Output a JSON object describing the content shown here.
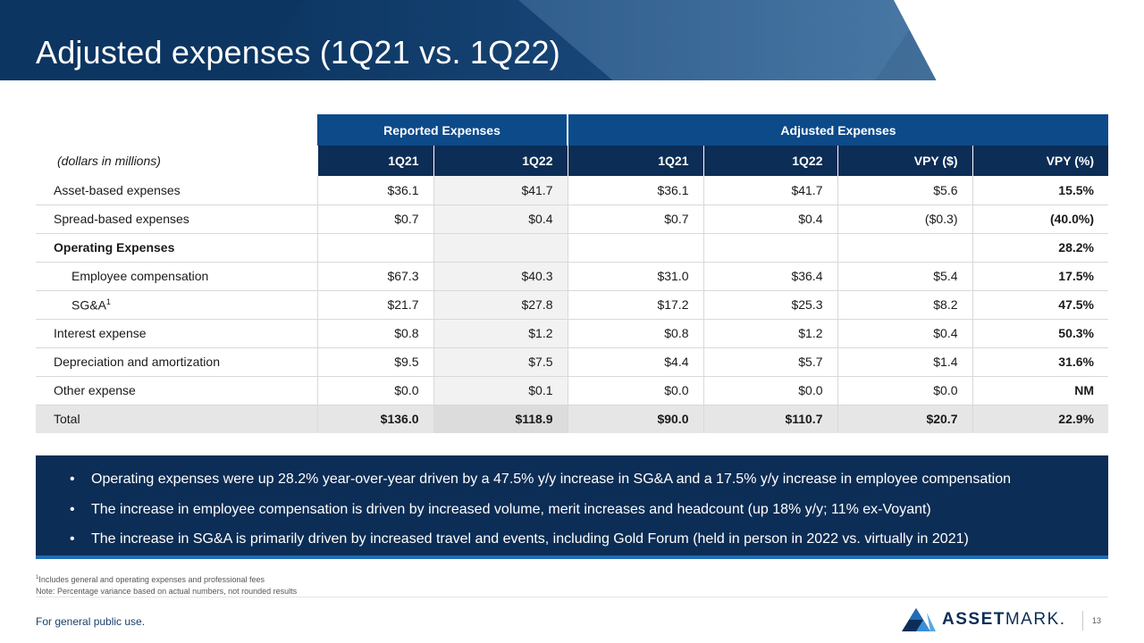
{
  "title": "Adjusted expenses (1Q21 vs. 1Q22)",
  "table": {
    "group_headers": [
      "Reported Expenses",
      "Adjusted Expenses"
    ],
    "row_label_header": "(dollars in millions)",
    "columns": [
      "1Q21",
      "1Q22",
      "1Q21",
      "1Q22",
      "VPY ($)",
      "VPY (%)"
    ],
    "rows": [
      {
        "label": "Asset-based expenses",
        "values": [
          "$36.1",
          "$41.7",
          "$36.1",
          "$41.7",
          "$5.6",
          "15.5%"
        ]
      },
      {
        "label": "Spread-based expenses",
        "values": [
          "$0.7",
          "$0.4",
          "$0.7",
          "$0.4",
          "($0.3)",
          "(40.0%)"
        ]
      },
      {
        "label": "Operating Expenses",
        "values": [
          "",
          "",
          "",
          "",
          "",
          "28.2%"
        ]
      },
      {
        "label": "Employee compensation",
        "values": [
          "$67.3",
          "$40.3",
          "$31.0",
          "$36.4",
          "$5.4",
          "17.5%"
        ]
      },
      {
        "label": "SG&A",
        "label_sup": "1",
        "values": [
          "$21.7",
          "$27.8",
          "$17.2",
          "$25.3",
          "$8.2",
          "47.5%"
        ]
      },
      {
        "label": "Interest expense",
        "values": [
          "$0.8",
          "$1.2",
          "$0.8",
          "$1.2",
          "$0.4",
          "50.3%"
        ]
      },
      {
        "label": "Depreciation and amortization",
        "values": [
          "$9.5",
          "$7.5",
          "$4.4",
          "$5.7",
          "$1.4",
          "31.6%"
        ]
      },
      {
        "label": "Other expense",
        "values": [
          "$0.0",
          "$0.1",
          "$0.0",
          "$0.0",
          "$0.0",
          "NM"
        ]
      },
      {
        "label": "Total",
        "values": [
          "$136.0",
          "$118.9",
          "$90.0",
          "$110.7",
          "$20.7",
          "22.9%"
        ]
      }
    ]
  },
  "commentary": {
    "bullet": "•",
    "items": [
      "Operating expenses were up 28.2% year-over-year driven by a 47.5% y/y increase in SG&A and a 17.5% y/y increase in employee compensation",
      "The increase in employee compensation is driven by increased volume, merit increases and headcount (up 18% y/y; 11% ex-Voyant)",
      "The increase in SG&A is primarily driven by increased travel and events, including Gold Forum (held in person in 2022 vs. virtually in 2021)"
    ]
  },
  "footnotes": {
    "note1_sup": "1",
    "note1": "Includes general and operating expenses and professional fees",
    "note2": "Note: Percentage variance based on actual numbers, not rounded results"
  },
  "footer": {
    "text": "For general public use.",
    "logo_text_bold": "ASSET",
    "logo_text_light": "MARK",
    "logo_text_dot": ".",
    "page_number": "13"
  },
  "colors": {
    "header_navy": "#0c3561",
    "group_header_blue": "#0c4a8a",
    "column_header_navy": "#0c2d55",
    "commentary_bg": "#0c2d55",
    "accent_blue": "#1f6db5"
  },
  "icons": {
    "logo_mark": "assetmark-triangle-logo-icon"
  }
}
